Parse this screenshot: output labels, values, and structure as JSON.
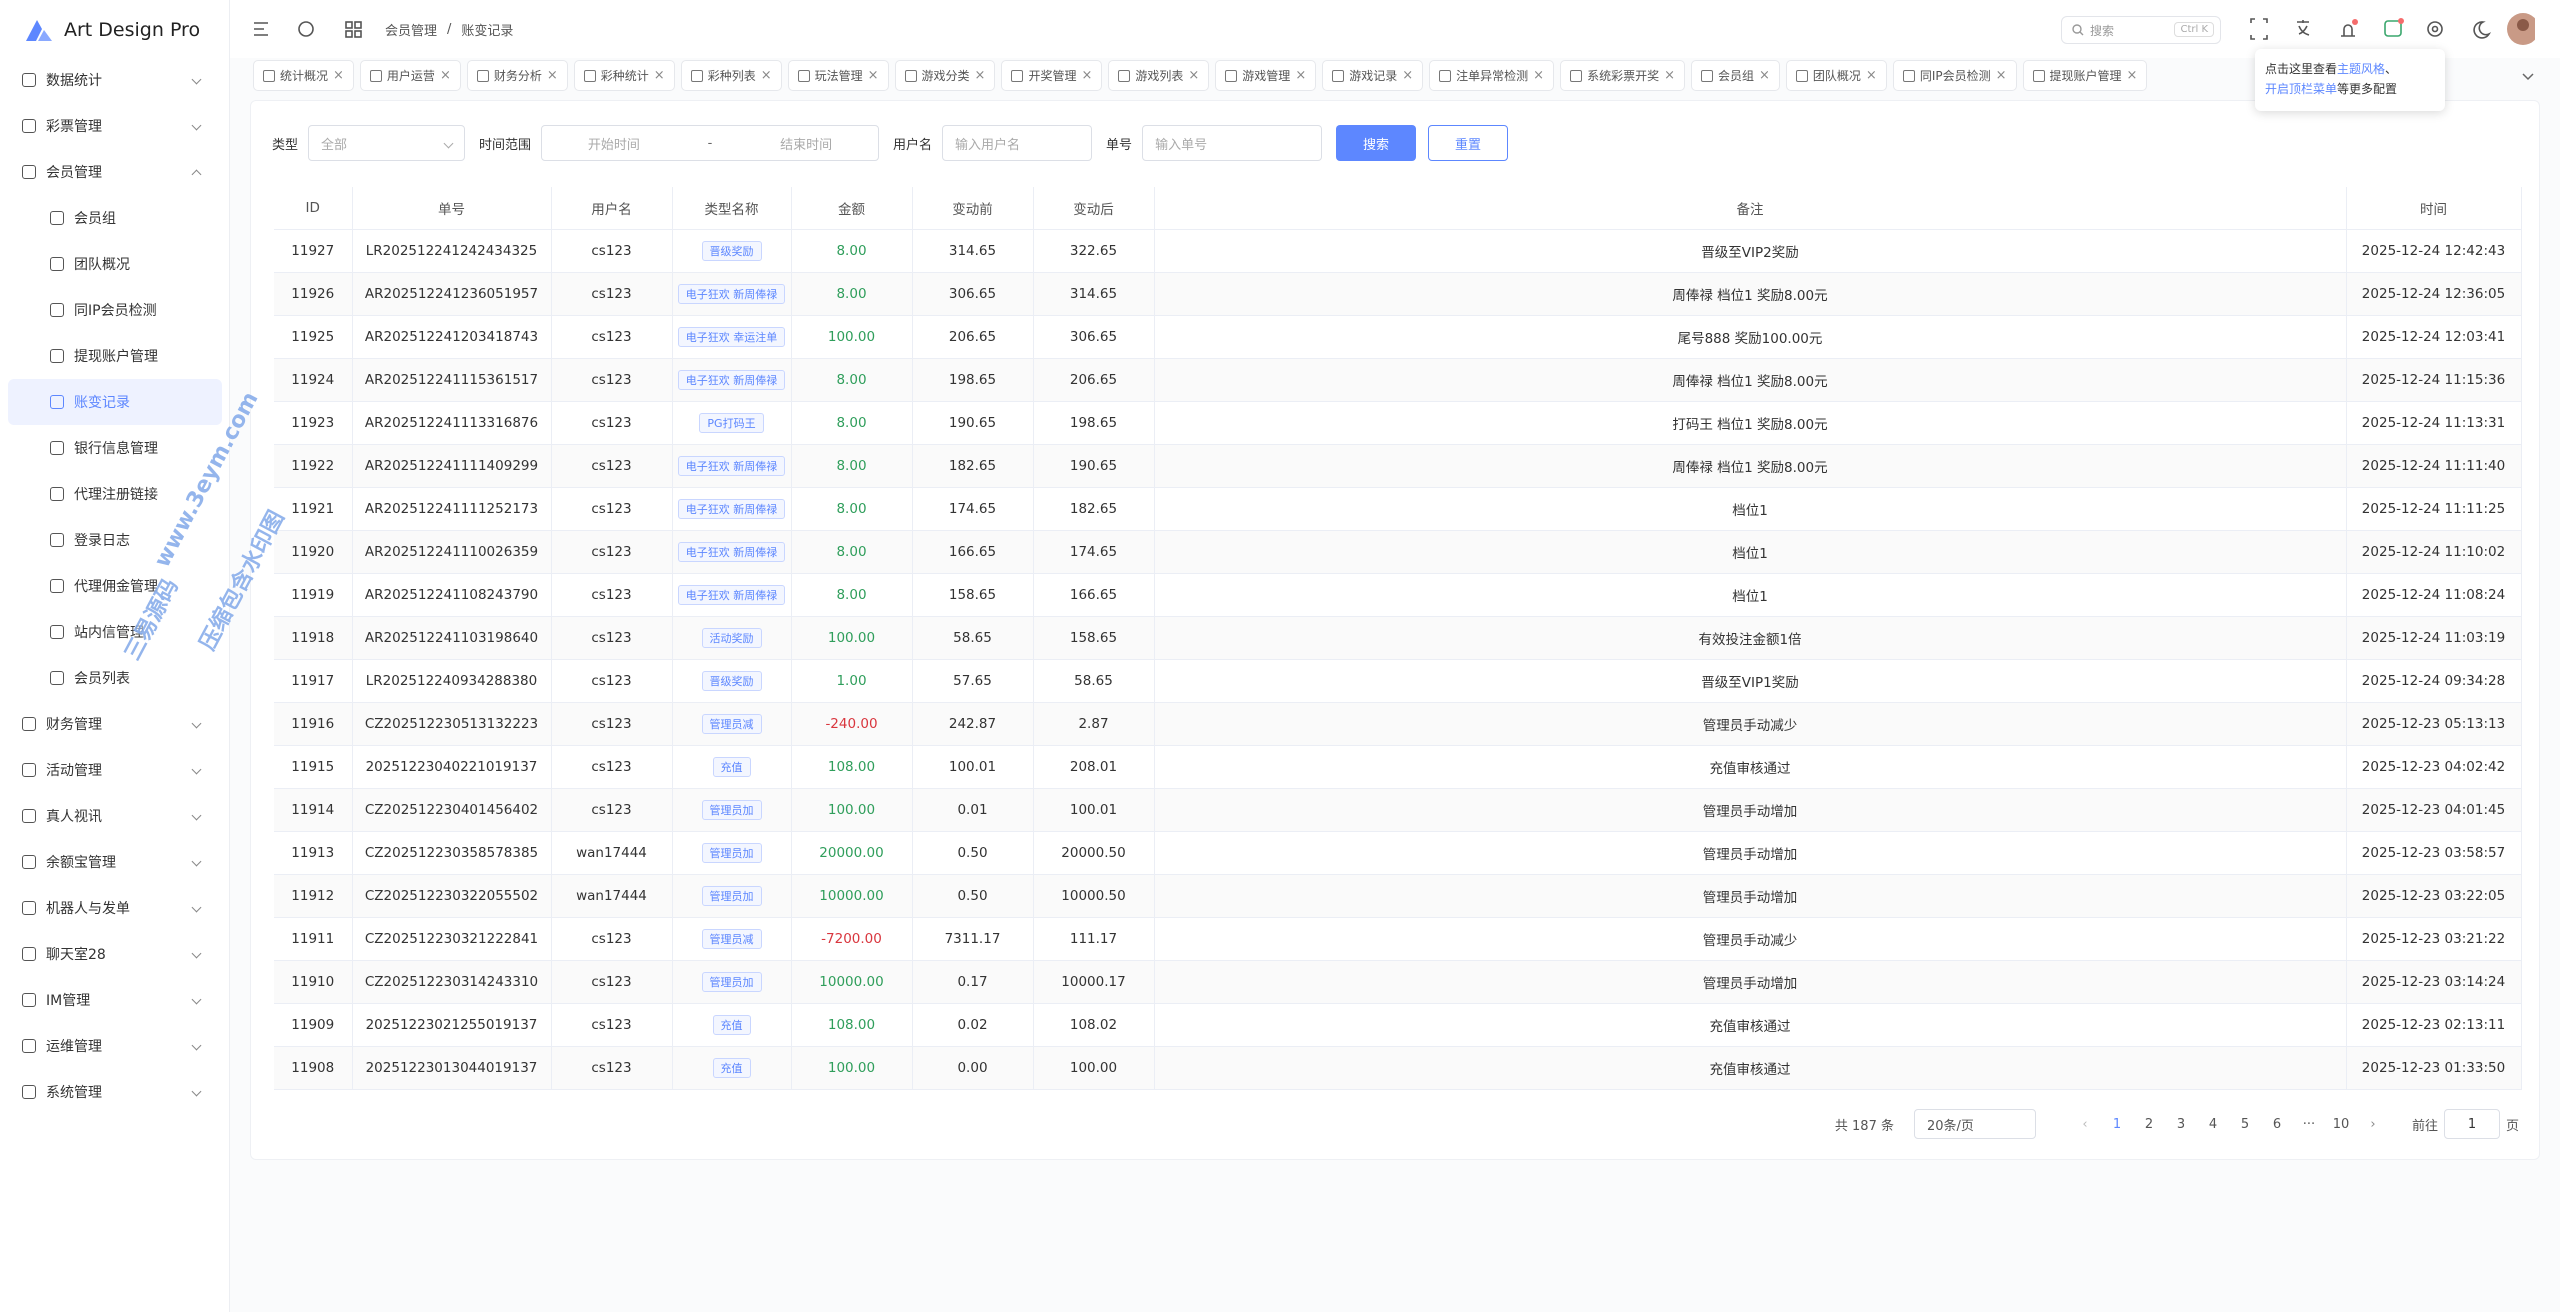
{
  "sidebar": {
    "title": "Art Design Pro",
    "menu": [
      {
        "label": "数据统计"
      },
      {
        "label": "彩票管理"
      },
      {
        "label": "会员管理",
        "children": [
          {
            "label": "会员组"
          },
          {
            "label": "团队概况"
          },
          {
            "label": "同IP会员检测"
          },
          {
            "label": "提现账户管理"
          },
          {
            "label": "账变记录",
            "active": true
          },
          {
            "label": "银行信息管理"
          },
          {
            "label": "代理注册链接"
          },
          {
            "label": "登录日志"
          },
          {
            "label": "代理佣金管理"
          },
          {
            "label": "站内信管理"
          },
          {
            "label": "会员列表"
          }
        ]
      },
      {
        "label": "财务管理"
      },
      {
        "label": "活动管理"
      },
      {
        "label": "真人视讯"
      },
      {
        "label": "余额宝管理"
      },
      {
        "label": "机器人与发单"
      },
      {
        "label": "聊天室28"
      },
      {
        "label": "IM管理"
      },
      {
        "label": "运维管理"
      },
      {
        "label": "系统管理"
      }
    ]
  },
  "header": {
    "breadcrumb": [
      "会员管理",
      "/",
      "账变记录"
    ],
    "search": "搜索",
    "shortcut": "Ctrl K"
  },
  "tabs": [
    "统计概况",
    "用户运营",
    "财务分析",
    "彩种统计",
    "彩种列表",
    "玩法管理",
    "游戏分类",
    "开奖管理",
    "游戏列表",
    "游戏管理",
    "游戏记录",
    "注单异常检测",
    "系统彩票开奖",
    "会员组",
    "团队概况",
    "同IP会员检测",
    "提现账户管理"
  ],
  "tooltip": {
    "lines": [
      [
        {
          "text": "点击这里查看"
        },
        {
          "text": "主题风格",
          "link": true
        },
        {
          "text": "、"
        }
      ],
      [
        {
          "text": "开启顶栏菜单",
          "link": true
        },
        {
          "text": "等更多配置"
        }
      ]
    ]
  },
  "filters": {
    "type_label": "类型",
    "type_placeholder": "全部",
    "range_label": "时间范围",
    "start": "开始时间",
    "sep": "-",
    "end": "结束时间",
    "user_label": "用户名",
    "user_placeholder": "输入用户名",
    "no_label": "单号",
    "no_placeholder": "输入单号",
    "search": "搜索",
    "reset": "重置"
  },
  "table": {
    "headers": [
      "ID",
      "单号",
      "用户名",
      "类型名称",
      "金额",
      "变动前",
      "变动后",
      "备注",
      "时间"
    ],
    "rows": [
      [
        "11927",
        "LR202512241242434325",
        "cs123",
        "晋级奖励",
        "8.00",
        "314.65",
        "322.65",
        "晋级至VIP2奖励",
        "2025-12-24 12:42:43"
      ],
      [
        "11926",
        "AR202512241236051957",
        "cs123",
        "电子狂欢 新周俸禄",
        "8.00",
        "306.65",
        "314.65",
        "周俸禄 档位1 奖励8.00元",
        "2025-12-24 12:36:05"
      ],
      [
        "11925",
        "AR202512241203418743",
        "cs123",
        "电子狂欢 幸运注单",
        "100.00",
        "206.65",
        "306.65",
        "尾号888 奖励100.00元",
        "2025-12-24 12:03:41"
      ],
      [
        "11924",
        "AR202512241115361517",
        "cs123",
        "电子狂欢 新周俸禄",
        "8.00",
        "198.65",
        "206.65",
        "周俸禄 档位1 奖励8.00元",
        "2025-12-24 11:15:36"
      ],
      [
        "11923",
        "AR202512241113316876",
        "cs123",
        "PG打码王",
        "8.00",
        "190.65",
        "198.65",
        "打码王 档位1 奖励8.00元",
        "2025-12-24 11:13:31"
      ],
      [
        "11922",
        "AR202512241111409299",
        "cs123",
        "电子狂欢 新周俸禄",
        "8.00",
        "182.65",
        "190.65",
        "周俸禄 档位1 奖励8.00元",
        "2025-12-24 11:11:40"
      ],
      [
        "11921",
        "AR202512241111252173",
        "cs123",
        "电子狂欢 新周俸禄",
        "8.00",
        "174.65",
        "182.65",
        "档位1",
        "2025-12-24 11:11:25"
      ],
      [
        "11920",
        "AR202512241110026359",
        "cs123",
        "电子狂欢 新周俸禄",
        "8.00",
        "166.65",
        "174.65",
        "档位1",
        "2025-12-24 11:10:02"
      ],
      [
        "11919",
        "AR202512241108243790",
        "cs123",
        "电子狂欢 新周俸禄",
        "8.00",
        "158.65",
        "166.65",
        "档位1",
        "2025-12-24 11:08:24"
      ],
      [
        "11918",
        "AR202512241103198640",
        "cs123",
        "活动奖励",
        "100.00",
        "58.65",
        "158.65",
        "有效投注金额1倍",
        "2025-12-24 11:03:19"
      ],
      [
        "11917",
        "LR202512240934288380",
        "cs123",
        "晋级奖励",
        "1.00",
        "57.65",
        "58.65",
        "晋级至VIP1奖励",
        "2025-12-24 09:34:28"
      ],
      [
        "11916",
        "CZ202512230513132223",
        "cs123",
        "管理员减",
        "-240.00",
        "242.87",
        "2.87",
        "管理员手动减少",
        "2025-12-23 05:13:13"
      ],
      [
        "11915",
        "20251223040221019137",
        "cs123",
        "充值",
        "108.00",
        "100.01",
        "208.01",
        "充值审核通过",
        "2025-12-23 04:02:42"
      ],
      [
        "11914",
        "CZ202512230401456402",
        "cs123",
        "管理员加",
        "100.00",
        "0.01",
        "100.01",
        "管理员手动增加",
        "2025-12-23 04:01:45"
      ],
      [
        "11913",
        "CZ202512230358578385",
        "wan17444",
        "管理员加",
        "20000.00",
        "0.50",
        "20000.50",
        "管理员手动增加",
        "2025-12-23 03:58:57"
      ],
      [
        "11912",
        "CZ202512230322055502",
        "wan17444",
        "管理员加",
        "10000.00",
        "0.50",
        "10000.50",
        "管理员手动增加",
        "2025-12-23 03:22:05"
      ],
      [
        "11911",
        "CZ202512230321222841",
        "cs123",
        "管理员减",
        "-7200.00",
        "7311.17",
        "111.17",
        "管理员手动减少",
        "2025-12-23 03:21:22"
      ],
      [
        "11910",
        "CZ202512230314243310",
        "cs123",
        "管理员加",
        "10000.00",
        "0.17",
        "10000.17",
        "管理员手动增加",
        "2025-12-23 03:14:24"
      ],
      [
        "11909",
        "20251223021255019137",
        "cs123",
        "充值",
        "108.00",
        "0.02",
        "108.02",
        "充值审核通过",
        "2025-12-23 02:13:11"
      ],
      [
        "11908",
        "20251223013044019137",
        "cs123",
        "充值",
        "100.00",
        "0.00",
        "100.00",
        "充值审核通过",
        "2025-12-23 01:33:50"
      ]
    ]
  },
  "pagination": {
    "total": "共 187 条",
    "size": "20条/页",
    "pages": [
      "1",
      "2",
      "3",
      "4",
      "5",
      "6",
      "···",
      "10"
    ],
    "current": 0,
    "goto": "前往",
    "goto_value": "1",
    "goto_unit": "页"
  },
  "watermark": [
    "www.3eym.com",
    "三易源码",
    "压缩包含水印图"
  ]
}
